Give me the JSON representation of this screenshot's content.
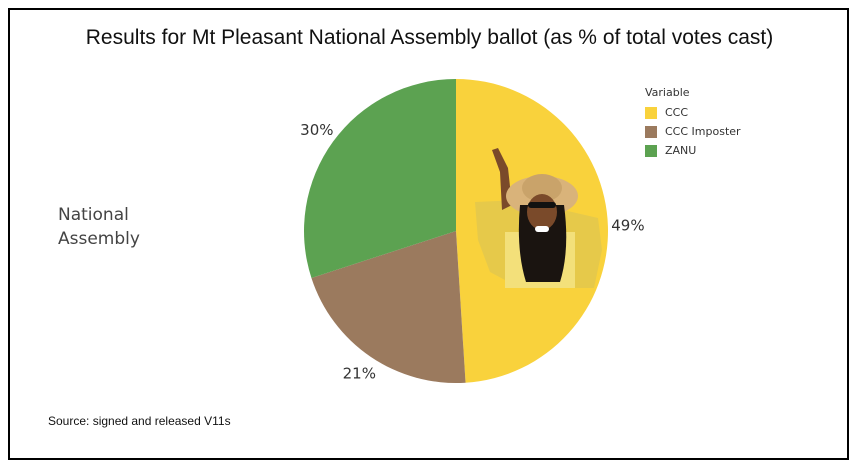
{
  "chart_data": {
    "type": "pie",
    "title": "Results for Mt Pleasant National Assembly ballot (as % of total votes cast)",
    "row_label": [
      "National",
      "Assembly"
    ],
    "legend_title": "Variable",
    "legend_position": "top-right",
    "slices": [
      {
        "name": "CCC",
        "value": 49,
        "label": "49%",
        "color": "#f9d23c"
      },
      {
        "name": "CCC Imposter",
        "value": 21,
        "label": "21%",
        "color": "#9b7a5e"
      },
      {
        "name": "ZANU",
        "value": 30,
        "label": "30%",
        "color": "#5ca251"
      }
    ],
    "source": "Source: signed and released V11s"
  }
}
